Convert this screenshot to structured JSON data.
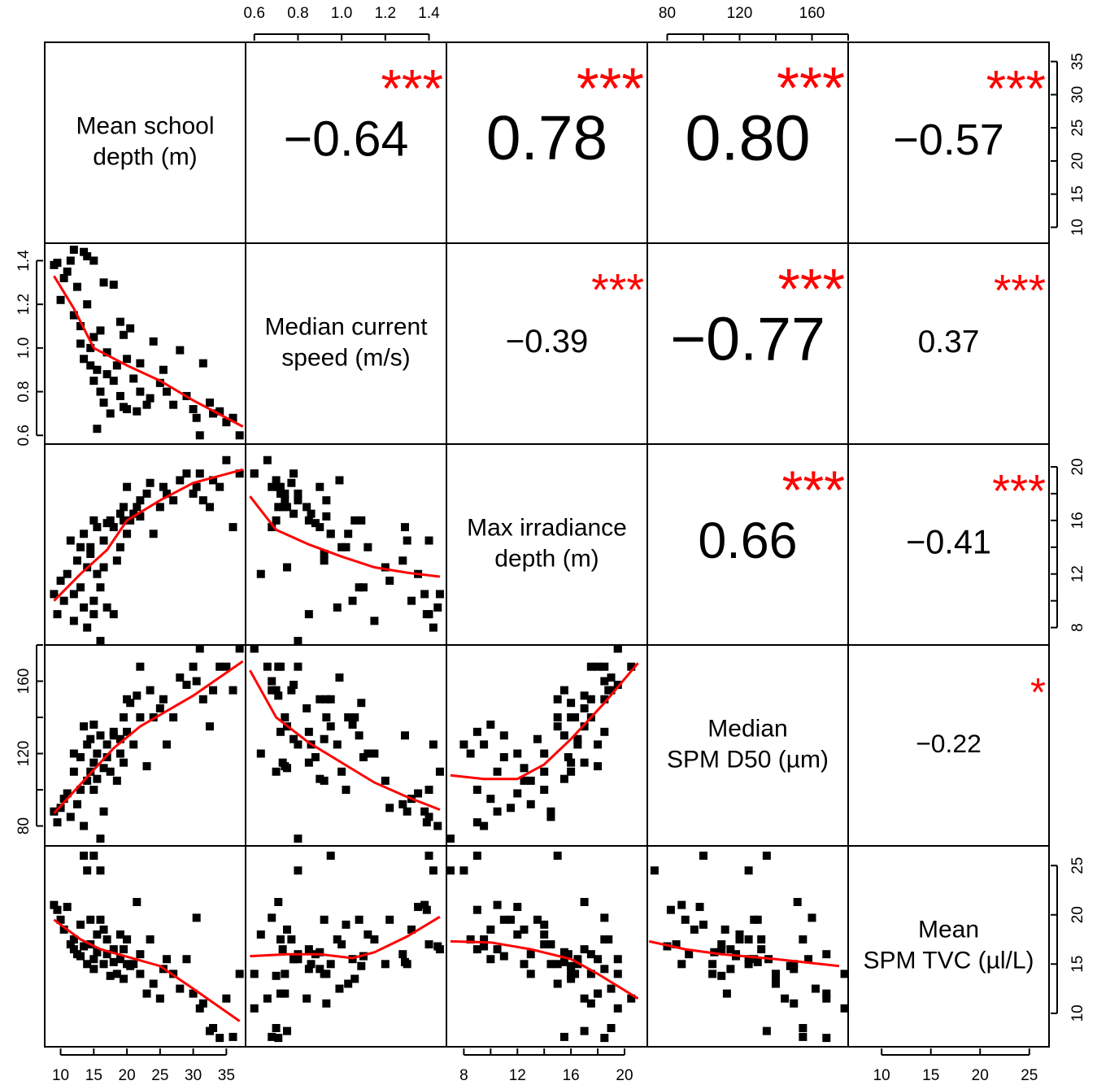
{
  "chart_data": {
    "type": "pairs",
    "point_color": "#000000",
    "smooth_color": "#ff0000",
    "star_color": "#ff0000",
    "variables": [
      {
        "label_lines": [
          "Mean school",
          "depth (m)"
        ],
        "lim": [
          7.6,
          37.9
        ],
        "ticks": [
          10,
          15,
          20,
          25,
          30,
          35
        ],
        "values": [
          9,
          9.5,
          10,
          10.5,
          11,
          11.5,
          12,
          12,
          12.5,
          13,
          13,
          13.5,
          13.5,
          14,
          14,
          14.5,
          14.5,
          15,
          15,
          15,
          15.5,
          15.5,
          16,
          16,
          16.5,
          16.5,
          17,
          17,
          17.5,
          18,
          18,
          18.5,
          19,
          19,
          19.5,
          19.5,
          20,
          20,
          20.5,
          21,
          21.5,
          22,
          22,
          23,
          23.5,
          24,
          25,
          25.5,
          26,
          27,
          28,
          29,
          30,
          30.5,
          31,
          31.5,
          32.5,
          33,
          34,
          35,
          36,
          37
        ]
      },
      {
        "label_lines": [
          "Median current",
          "speed (m/s)"
        ],
        "lim": [
          0.56,
          1.48
        ],
        "ticks": [
          0.6,
          0.8,
          {
            "value": 1,
            "label": "1.0"
          },
          1.2,
          1.4
        ],
        "values": [
          1.38,
          1.39,
          1.22,
          1.32,
          1.35,
          1.4,
          1.45,
          1.15,
          1.28,
          1.02,
          1.1,
          1.44,
          0.95,
          1.2,
          1.42,
          1,
          0.92,
          1.05,
          0.85,
          1.4,
          0.63,
          0.9,
          1.08,
          0.8,
          1.3,
          0.75,
          0.88,
          0.98,
          0.7,
          0.85,
          1.29,
          0.92,
          0.78,
          1.12,
          0.73,
          1.06,
          0.95,
          0.72,
          1.09,
          0.86,
          0.71,
          0.8,
          0.93,
          0.74,
          0.77,
          1.03,
          0.84,
          0.9,
          0.8,
          0.74,
          0.99,
          0.78,
          0.72,
          0.68,
          0.6,
          0.93,
          0.75,
          0.7,
          0.71,
          0.66,
          0.68,
          0.6
        ]
      },
      {
        "label_lines": [
          "Max irradiance",
          "depth (m)"
        ],
        "lim": [
          6.7,
          21.7
        ],
        "ticks": [
          8,
          12,
          16,
          20
        ],
        "minor_ticks": [
          10,
          14,
          18
        ],
        "values": [
          10.5,
          9,
          11.5,
          10,
          12,
          14.5,
          10.5,
          8.5,
          13,
          14,
          11,
          9.5,
          15,
          12.5,
          8,
          14,
          13.5,
          10,
          16,
          9,
          12,
          15.5,
          11,
          7,
          14.5,
          12.5,
          15.8,
          9.5,
          16,
          9,
          15.5,
          13,
          16.5,
          14,
          17,
          16,
          15,
          18.5,
          16,
          16.5,
          17,
          17.5,
          16.3,
          18,
          18.8,
          15,
          17,
          18.5,
          18,
          17.5,
          19,
          19.5,
          18,
          18.5,
          19.5,
          17.5,
          17,
          19,
          18.5,
          20.5,
          15.5,
          19.5
        ]
      },
      {
        "label_lines": [
          "Median",
          "SPM D50 (µm)"
        ],
        "lim": [
          69,
          180
        ],
        "ticks": [
          80,
          120,
          160
        ],
        "minor_ticks": [
          100,
          140,
          180
        ],
        "values": [
          88,
          82,
          90,
          95,
          98,
          85,
          110,
          120,
          92,
          100,
          118,
          80,
          135,
          105,
          125,
          110,
          128,
          136,
          115,
          100,
          120,
          106,
          130,
          73,
          88,
          112,
          118,
          125,
          110,
          132,
          130,
          105,
          128,
          120,
          115,
          140,
          150,
          132,
          148,
          125,
          152,
          168,
          140,
          113,
          155,
          140,
          145,
          150,
          125,
          140,
          162,
          158,
          168,
          160,
          178,
          150,
          135,
          155,
          168,
          168,
          155,
          178
        ]
      },
      {
        "label_lines": [
          "Mean",
          "SPM TVC (µl/L)"
        ],
        "lim": [
          6.6,
          27
        ],
        "ticks": [
          10,
          15,
          20,
          25
        ],
        "values": [
          21,
          20.5,
          19.5,
          18.5,
          20.8,
          17,
          16.5,
          17.5,
          16,
          19,
          15.8,
          16.8,
          26,
          15,
          24.5,
          17,
          19.5,
          15.5,
          14.5,
          26,
          18,
          16.2,
          19.5,
          24.5,
          15,
          18.5,
          16,
          17.5,
          13.8,
          16.5,
          15.2,
          14,
          15.5,
          18,
          16.5,
          13.5,
          15,
          17.5,
          14.8,
          15,
          21.3,
          16,
          14,
          12,
          17.5,
          13,
          11.5,
          14.5,
          15.5,
          14,
          12.5,
          15.5,
          12,
          19.7,
          10.5,
          11,
          8.2,
          8.5,
          7.5,
          11.5,
          7.6,
          14
        ]
      }
    ],
    "correlations": [
      {
        "row": 0,
        "col": 1,
        "value": -0.64,
        "value_label": "−0.64",
        "stars": "***"
      },
      {
        "row": 0,
        "col": 2,
        "value": 0.78,
        "value_label": "0.78",
        "stars": "***"
      },
      {
        "row": 0,
        "col": 3,
        "value": 0.8,
        "value_label": "0.80",
        "stars": "***"
      },
      {
        "row": 0,
        "col": 4,
        "value": -0.57,
        "value_label": "−0.57",
        "stars": "***"
      },
      {
        "row": 1,
        "col": 2,
        "value": -0.39,
        "value_label": "−0.39",
        "stars": "***"
      },
      {
        "row": 1,
        "col": 3,
        "value": -0.77,
        "value_label": "−0.77",
        "stars": "***"
      },
      {
        "row": 1,
        "col": 4,
        "value": 0.37,
        "value_label": "0.37",
        "stars": "***"
      },
      {
        "row": 2,
        "col": 3,
        "value": 0.66,
        "value_label": "0.66",
        "stars": "***"
      },
      {
        "row": 2,
        "col": 4,
        "value": -0.41,
        "value_label": "−0.41",
        "stars": "***"
      },
      {
        "row": 3,
        "col": 4,
        "value": -0.22,
        "value_label": "−0.22",
        "stars": "*"
      }
    ],
    "smooths": [
      {
        "row": 1,
        "col": 0,
        "x": [
          9,
          12,
          15,
          20,
          25,
          30,
          37.5
        ],
        "y": [
          1.33,
          1.18,
          1.0,
          0.92,
          0.85,
          0.76,
          0.64
        ]
      },
      {
        "row": 2,
        "col": 0,
        "x": [
          9,
          13,
          17,
          20,
          25,
          30,
          37.5
        ],
        "y": [
          10,
          12,
          13.8,
          16,
          17.5,
          18.8,
          19.8
        ]
      },
      {
        "row": 3,
        "col": 0,
        "x": [
          9,
          13,
          18,
          22,
          30,
          37.5
        ],
        "y": [
          87,
          103,
          123,
          135,
          152,
          171
        ]
      },
      {
        "row": 4,
        "col": 0,
        "x": [
          9,
          13,
          16,
          25,
          30,
          37
        ],
        "y": [
          19.5,
          17.5,
          16.5,
          14.8,
          12.5,
          9.2
        ]
      },
      {
        "row": 2,
        "col": 1,
        "x": [
          0.58,
          0.7,
          0.85,
          1.0,
          1.15,
          1.3,
          1.45
        ],
        "y": [
          17.8,
          15.3,
          14.2,
          13.3,
          12.5,
          12.1,
          11.8
        ]
      },
      {
        "row": 3,
        "col": 1,
        "x": [
          0.58,
          0.7,
          0.85,
          1.0,
          1.15,
          1.3,
          1.45
        ],
        "y": [
          166,
          140,
          126,
          115,
          104,
          96,
          89
        ]
      },
      {
        "row": 4,
        "col": 1,
        "x": [
          0.58,
          0.75,
          0.9,
          1.05,
          1.15,
          1.3,
          1.45
        ],
        "y": [
          15.8,
          16,
          16,
          15.6,
          16.2,
          17.8,
          19.8
        ]
      },
      {
        "row": 3,
        "col": 2,
        "x": [
          7,
          9.5,
          12,
          14,
          16,
          18.5,
          21
        ],
        "y": [
          108,
          106,
          106,
          114,
          128,
          148,
          170
        ]
      },
      {
        "row": 4,
        "col": 2,
        "x": [
          7,
          10,
          13,
          16,
          18,
          21
        ],
        "y": [
          17.3,
          17.2,
          16.5,
          15.5,
          14,
          11.5
        ]
      },
      {
        "row": 4,
        "col": 3,
        "x": [
          70,
          90,
          110,
          140,
          175
        ],
        "y": [
          17.3,
          16.5,
          16,
          15.5,
          14.8
        ]
      }
    ]
  }
}
